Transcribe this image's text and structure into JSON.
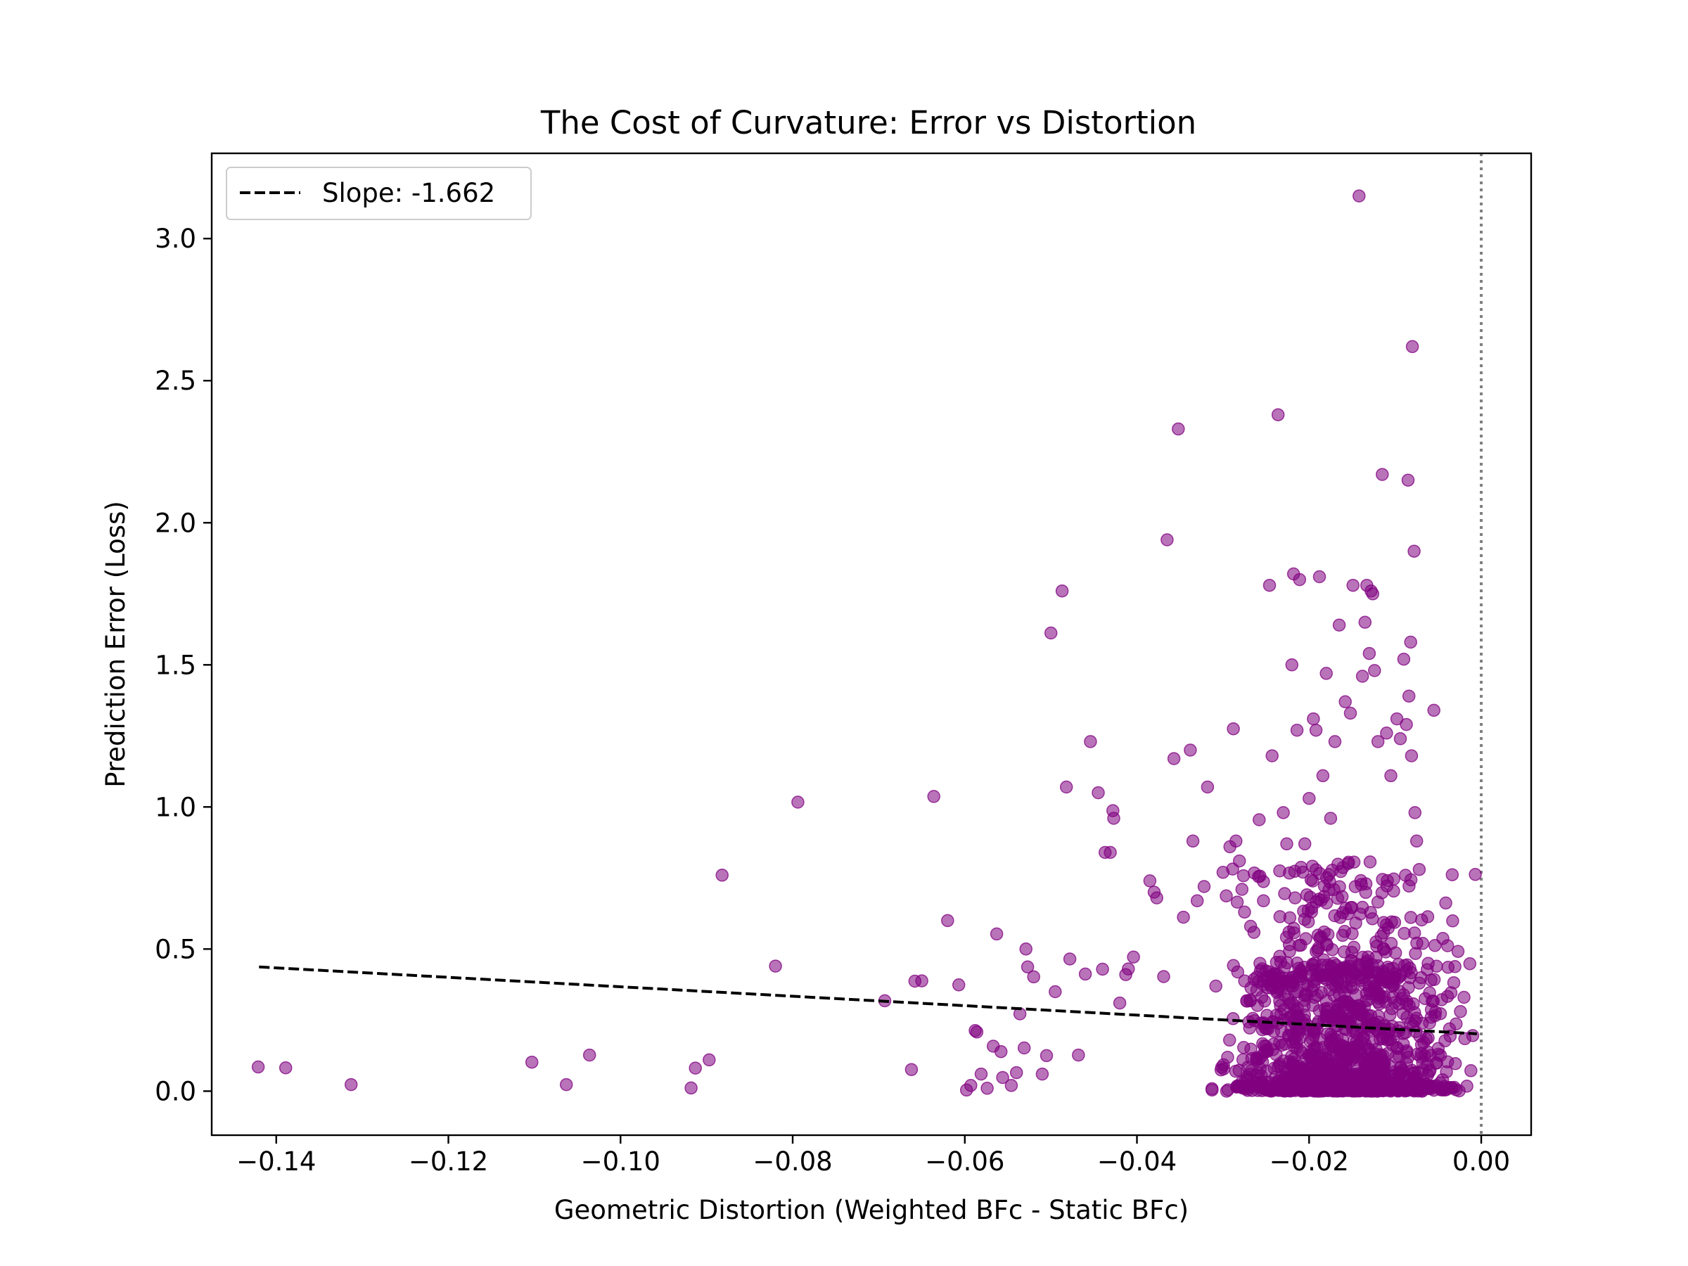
{
  "chart_data": {
    "type": "scatter",
    "title": "The Cost of Curvature: Error vs Distortion",
    "xlabel": "Geometric Distortion (Weighted BFc - Static BFc)",
    "ylabel": "Prediction Error (Loss)",
    "xlim": [
      -0.1475,
      0.0058
    ],
    "ylim": [
      -0.155,
      3.3
    ],
    "xticks": [
      -0.14,
      -0.12,
      -0.1,
      -0.08,
      -0.06,
      -0.04,
      -0.02,
      0.0
    ],
    "xtick_labels": [
      "−0.14",
      "−0.12",
      "−0.10",
      "−0.08",
      "−0.06",
      "−0.04",
      "−0.02",
      "0.00"
    ],
    "yticks": [
      0.0,
      0.5,
      1.0,
      1.5,
      2.0,
      2.5,
      3.0
    ],
    "ytick_labels": [
      "0.0",
      "0.5",
      "1.0",
      "1.5",
      "2.0",
      "2.5",
      "3.0"
    ],
    "grid": false,
    "legend": {
      "position": "top-left",
      "entries": [
        "Slope: -1.662"
      ]
    },
    "colors": {
      "points": "#800080",
      "fit": "#000000",
      "reference": "#808080"
    },
    "point_alpha": 0.55,
    "reference_line": {
      "x": 0.0,
      "style": "dotted"
    },
    "fit_line": {
      "name": "Slope: -1.662",
      "slope": -1.662,
      "intercept": 0.201,
      "x_range": [
        -0.142,
        -0.0005
      ]
    },
    "dense_cluster": {
      "count": 1500,
      "x_range": [
        -0.032,
        -0.0005
      ],
      "x_peak": -0.016,
      "y_typical_max": 0.45,
      "seed": 7
    },
    "series": [
      {
        "name": "samples",
        "points": [
          [
            -0.1421,
            0.085
          ],
          [
            -0.1389,
            0.082
          ],
          [
            -0.1313,
            0.023
          ],
          [
            -0.1103,
            0.102
          ],
          [
            -0.1063,
            0.023
          ],
          [
            -0.1036,
            0.127
          ],
          [
            -0.0918,
            0.011
          ],
          [
            -0.0913,
            0.081
          ],
          [
            -0.0897,
            0.11
          ],
          [
            -0.0882,
            0.76
          ],
          [
            -0.082,
            0.44
          ],
          [
            -0.0794,
            1.017
          ],
          [
            -0.0693,
            0.318
          ],
          [
            -0.0662,
            0.076
          ],
          [
            -0.0658,
            0.387
          ],
          [
            -0.065,
            0.388
          ],
          [
            -0.0636,
            1.037
          ],
          [
            -0.062,
            0.6
          ],
          [
            -0.0607,
            0.374
          ],
          [
            -0.0598,
            0.004
          ],
          [
            -0.0593,
            0.02
          ],
          [
            -0.0588,
            0.213
          ],
          [
            -0.0586,
            0.208
          ],
          [
            -0.0581,
            0.06
          ],
          [
            -0.0574,
            0.01
          ],
          [
            -0.0567,
            0.158
          ],
          [
            -0.0563,
            0.553
          ],
          [
            -0.0558,
            0.139
          ],
          [
            -0.0556,
            0.048
          ],
          [
            -0.0546,
            0.02
          ],
          [
            -0.054,
            0.065
          ],
          [
            -0.0536,
            0.272
          ],
          [
            -0.0531,
            0.152
          ],
          [
            -0.0529,
            0.5
          ],
          [
            -0.0527,
            0.437
          ],
          [
            -0.052,
            0.402
          ],
          [
            -0.051,
            0.06
          ],
          [
            -0.0505,
            0.125
          ],
          [
            -0.05,
            1.612
          ],
          [
            -0.0495,
            0.35
          ],
          [
            -0.0487,
            1.76
          ],
          [
            -0.0482,
            1.07
          ],
          [
            -0.0478,
            0.465
          ],
          [
            -0.0468,
            0.127
          ],
          [
            -0.046,
            0.412
          ],
          [
            -0.0454,
            1.23
          ],
          [
            -0.0445,
            1.05
          ],
          [
            -0.044,
            0.429
          ],
          [
            -0.0437,
            0.84
          ],
          [
            -0.0431,
            0.84
          ],
          [
            -0.0428,
            0.987
          ],
          [
            -0.0427,
            0.96
          ],
          [
            -0.042,
            0.31
          ],
          [
            -0.0413,
            0.41
          ],
          [
            -0.041,
            0.43
          ],
          [
            -0.0404,
            0.472
          ],
          [
            -0.0385,
            0.74
          ],
          [
            -0.038,
            0.7
          ],
          [
            -0.0377,
            0.68
          ],
          [
            -0.0369,
            0.403
          ],
          [
            -0.0365,
            1.94
          ],
          [
            -0.0357,
            1.17
          ],
          [
            -0.0352,
            2.33
          ],
          [
            -0.0346,
            0.612
          ],
          [
            -0.0338,
            1.2
          ],
          [
            -0.0335,
            0.88
          ],
          [
            -0.033,
            0.67
          ],
          [
            -0.0322,
            0.72
          ],
          [
            -0.0318,
            1.07
          ],
          [
            -0.03,
            0.77
          ],
          [
            -0.0292,
            0.86
          ],
          [
            -0.0288,
            1.275
          ],
          [
            -0.0285,
            0.88
          ],
          [
            -0.0281,
            0.81
          ],
          [
            -0.0278,
            0.71
          ],
          [
            -0.0275,
            0.63
          ],
          [
            -0.0268,
            0.58
          ],
          [
            -0.0258,
            0.955
          ],
          [
            -0.0253,
            0.67
          ],
          [
            -0.0246,
            1.78
          ],
          [
            -0.0243,
            1.18
          ],
          [
            -0.0236,
            2.38
          ],
          [
            -0.023,
            0.98
          ],
          [
            -0.0226,
            0.87
          ],
          [
            -0.022,
            1.5
          ],
          [
            -0.0218,
            1.82
          ],
          [
            -0.0214,
            1.27
          ],
          [
            -0.0211,
            1.8
          ],
          [
            -0.0205,
            0.87
          ],
          [
            -0.02,
            1.03
          ],
          [
            -0.0195,
            1.31
          ],
          [
            -0.0192,
            1.27
          ],
          [
            -0.0188,
            1.81
          ],
          [
            -0.0184,
            1.11
          ],
          [
            -0.018,
            1.47
          ],
          [
            -0.0175,
            0.96
          ],
          [
            -0.017,
            1.23
          ],
          [
            -0.0165,
            1.64
          ],
          [
            -0.0158,
            1.37
          ],
          [
            -0.0152,
            1.33
          ],
          [
            -0.0149,
            1.78
          ],
          [
            -0.0142,
            3.15
          ],
          [
            -0.0138,
            1.46
          ],
          [
            -0.0135,
            1.65
          ],
          [
            -0.0133,
            1.78
          ],
          [
            -0.013,
            1.54
          ],
          [
            -0.0128,
            1.76
          ],
          [
            -0.0126,
            1.75
          ],
          [
            -0.0124,
            1.48
          ],
          [
            -0.012,
            1.23
          ],
          [
            -0.0115,
            2.17
          ],
          [
            -0.011,
            1.26
          ],
          [
            -0.0105,
            1.11
          ],
          [
            -0.0098,
            1.31
          ],
          [
            -0.0094,
            1.24
          ],
          [
            -0.009,
            1.52
          ],
          [
            -0.0087,
            1.29
          ],
          [
            -0.0085,
            2.15
          ],
          [
            -0.0084,
            1.39
          ],
          [
            -0.0082,
            1.58
          ],
          [
            -0.0081,
            1.18
          ],
          [
            -0.008,
            2.62
          ],
          [
            -0.0078,
            1.9
          ],
          [
            -0.0077,
            0.98
          ],
          [
            -0.0075,
            0.88
          ],
          [
            -0.0072,
            0.78
          ],
          [
            -0.0068,
            0.52
          ],
          [
            -0.006,
            0.24
          ],
          [
            -0.0055,
            1.34
          ],
          [
            -0.005,
            0.15
          ],
          [
            -0.0045,
            0.04
          ],
          [
            -0.002,
            0.33
          ],
          [
            -0.0012,
            0.072
          ]
        ]
      }
    ]
  }
}
